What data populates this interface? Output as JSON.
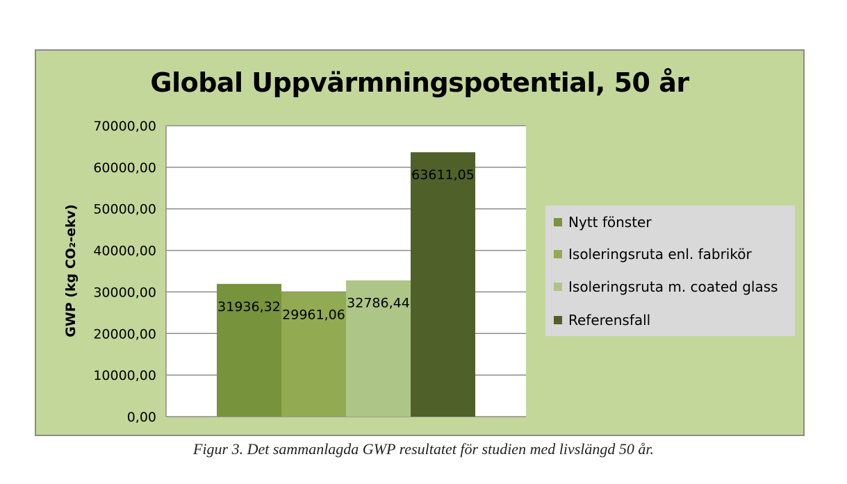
{
  "chart_data": {
    "type": "bar",
    "title": "Global Uppvärmningspotential, 50 år",
    "ylabel": "GWP (kg CO₂-ekv)",
    "ylim": [
      0,
      70000
    ],
    "yticks": [
      0,
      10000,
      20000,
      30000,
      40000,
      50000,
      60000,
      70000
    ],
    "ytick_labels": [
      "0,00",
      "10000,00",
      "20000,00",
      "30000,00",
      "40000,00",
      "50000,00",
      "60000,00",
      "70000,00"
    ],
    "grid": true,
    "legend_position": "right",
    "series": [
      {
        "name": "Nytt fönster",
        "values": [
          31936.32
        ],
        "label": "31936,32",
        "color": "#77933c"
      },
      {
        "name": "Isoleringsruta enl. fabrikör",
        "values": [
          29961.06
        ],
        "label": "29961,06",
        "color": "#92aa51"
      },
      {
        "name": "Isoleringsruta m. coated glass",
        "values": [
          32786.44
        ],
        "label": "32786,44",
        "color": "#adc587"
      },
      {
        "name": "Referensfall",
        "values": [
          63611.05
        ],
        "label": "63611,05",
        "color": "#4f6128"
      }
    ]
  },
  "caption": "Figur 3. Det sammanlagda GWP resultatet för studien med livslängd 50 år."
}
